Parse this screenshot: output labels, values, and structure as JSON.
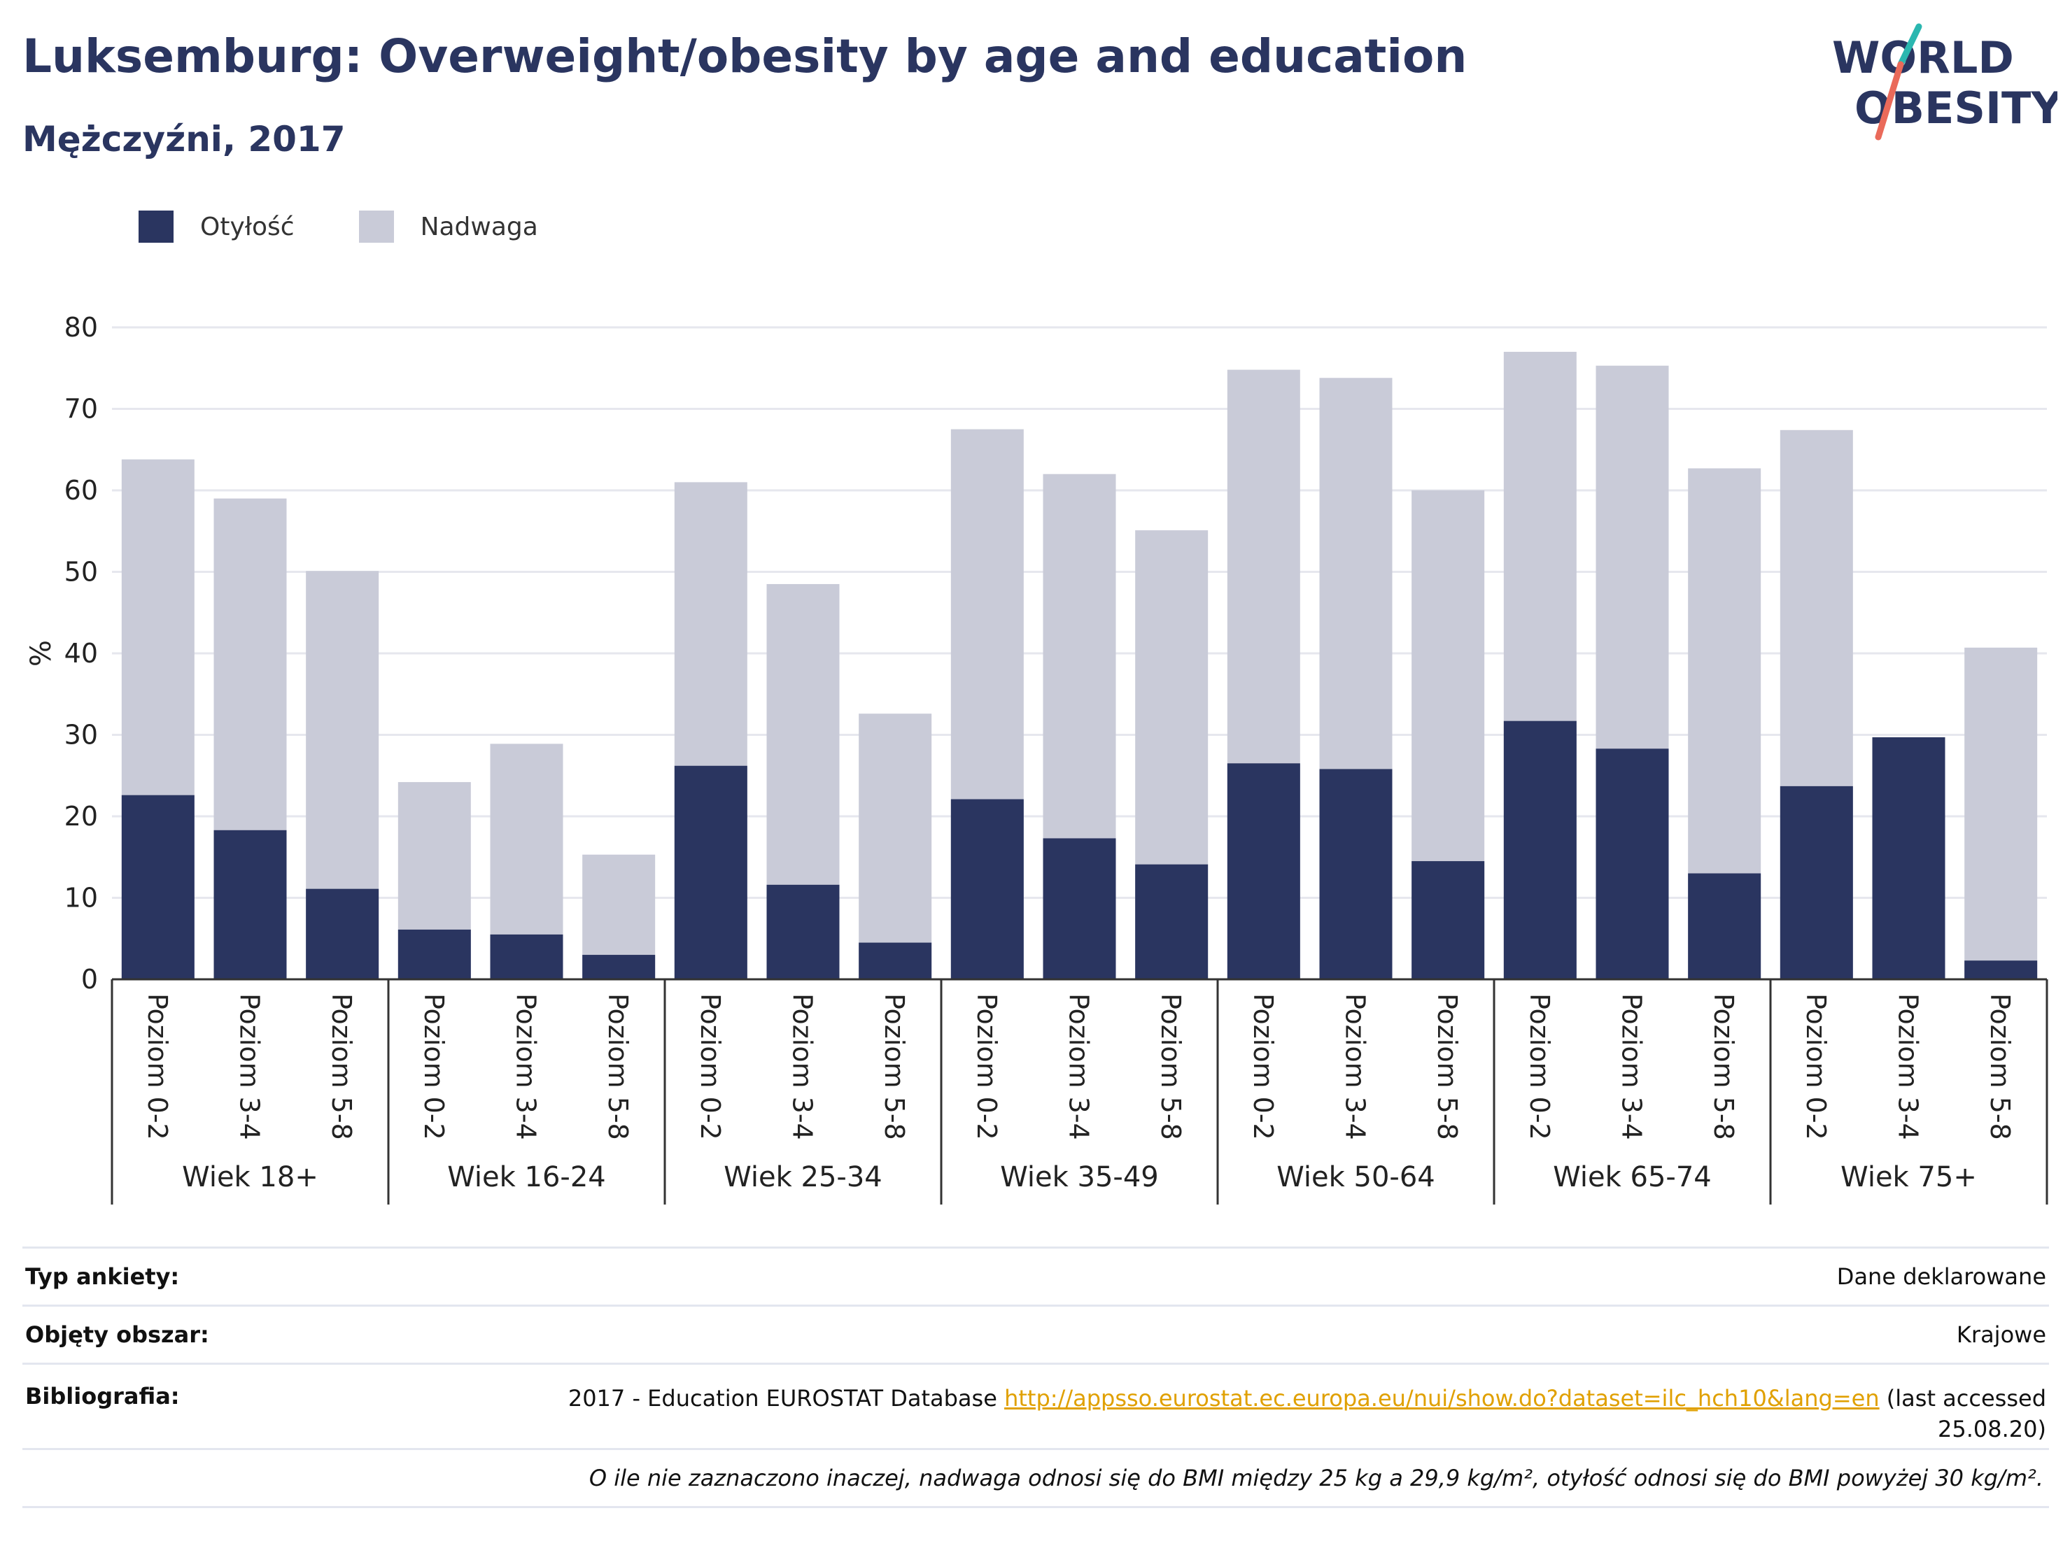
{
  "title": "Luksemburg: Overweight/obesity by age and education",
  "subtitle": "Mężczyźni, 2017",
  "logo": {
    "line1": "WORLD",
    "line2": "OBESITY"
  },
  "colors": {
    "obesity": "#2a3560",
    "overweight": "#c9cbd8",
    "text": "#2a3560",
    "link": "#e0a000",
    "logo_teal": "#2bb7b0",
    "logo_red": "#ea6a5a"
  },
  "legend": {
    "obesity_label": "Otyłość",
    "overweight_label": "Nadwaga"
  },
  "chart_data": {
    "type": "bar",
    "stacked": true,
    "ylabel": "%",
    "ylim": [
      0,
      80
    ],
    "yticks": [
      0,
      10,
      20,
      30,
      40,
      50,
      60,
      70,
      80
    ],
    "grid": true,
    "legend_position": "top-left",
    "groups": [
      {
        "label": "Wiek 18+",
        "categories": [
          "Poziom 0-2",
          "Poziom 3-4",
          "Poziom 5-8"
        ],
        "obesity": [
          22.6,
          18.3,
          11.1
        ],
        "total": [
          63.8,
          59.0,
          50.1
        ]
      },
      {
        "label": "Wiek 16-24",
        "categories": [
          "Poziom 0-2",
          "Poziom 3-4",
          "Poziom 5-8"
        ],
        "obesity": [
          6.1,
          5.5,
          3.0
        ],
        "total": [
          24.2,
          28.9,
          15.3
        ]
      },
      {
        "label": "Wiek 25-34",
        "categories": [
          "Poziom 0-2",
          "Poziom 3-4",
          "Poziom 5-8"
        ],
        "obesity": [
          26.2,
          11.6,
          4.5
        ],
        "total": [
          61.0,
          48.5,
          32.6
        ]
      },
      {
        "label": "Wiek 35-49",
        "categories": [
          "Poziom 0-2",
          "Poziom 3-4",
          "Poziom 5-8"
        ],
        "obesity": [
          22.1,
          17.3,
          14.1
        ],
        "total": [
          67.5,
          62.0,
          55.1
        ]
      },
      {
        "label": "Wiek 50-64",
        "categories": [
          "Poziom 0-2",
          "Poziom 3-4",
          "Poziom 5-8"
        ],
        "obesity": [
          26.5,
          25.8,
          14.5
        ],
        "total": [
          74.8,
          73.8,
          60.0
        ]
      },
      {
        "label": "Wiek 65-74",
        "categories": [
          "Poziom 0-2",
          "Poziom 3-4",
          "Poziom 5-8"
        ],
        "obesity": [
          31.7,
          28.3,
          13.0
        ],
        "total": [
          77.0,
          75.3,
          62.7
        ]
      },
      {
        "label": "Wiek 75+",
        "categories": [
          "Poziom 0-2",
          "Poziom 3-4",
          "Poziom 5-8"
        ],
        "obesity": [
          23.7,
          29.7,
          2.3
        ],
        "total": [
          67.4,
          29.7,
          40.7
        ]
      }
    ]
  },
  "info": {
    "survey_type_label": "Typ ankiety:",
    "survey_type_value": "Dane deklarowane",
    "area_label": "Objęty obszar:",
    "area_value": "Krajowe",
    "bibliography_label": "Bibliografia:",
    "bibliography_text": "2017 - Education EUROSTAT Database",
    "bibliography_link": "http://appsso.eurostat.ec.europa.eu/nui/show.do?dataset=ilc_hch10&lang=en",
    "bibliography_suffix": "(last accessed 25.08.20)",
    "note": "O ile nie zaznaczono inaczej, nadwaga odnosi się do BMI między 25 kg a 29,9 kg/m², otyłość odnosi się do BMI powyżej 30 kg/m²."
  }
}
